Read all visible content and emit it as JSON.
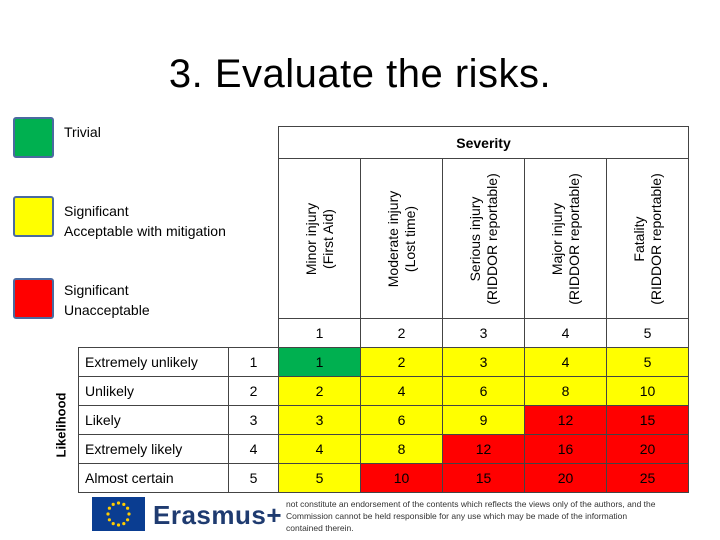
{
  "title": "3.  Evaluate the risks.",
  "legend": [
    {
      "name": "Trivial",
      "color": "#00b050"
    },
    {
      "name": "Significant\nAcceptable with mitigation",
      "line1": "Significant",
      "line2": "Acceptable with mitigation",
      "color": "#ffff00"
    },
    {
      "name": "Significant\nUnacceptable",
      "line1": "Significant",
      "line2": "Unacceptable",
      "color": "#ff0000"
    }
  ],
  "matrix": {
    "severity_title": "Severity",
    "likelihood_title": "Likelihood",
    "severity_columns": [
      {
        "line1": "Minor injury",
        "line2": "(First Aid)",
        "level": "1"
      },
      {
        "line1": "Moderate injury",
        "line2": "(Lost time)",
        "level": "2"
      },
      {
        "line1": "Serious injury",
        "line2": "(RIDDOR reportable)",
        "level": "3"
      },
      {
        "line1": "Major injury",
        "line2": "(RIDDOR reportable)",
        "level": "4"
      },
      {
        "line1": "Fatality",
        "line2": "(RIDDOR reportable)",
        "level": "5"
      }
    ],
    "rows": [
      {
        "label": "Extremely unlikely",
        "level": "1",
        "values": [
          "1",
          "2",
          "3",
          "4",
          "5"
        ],
        "colors": [
          "g",
          "y",
          "y",
          "y",
          "y"
        ]
      },
      {
        "label": "Unlikely",
        "level": "2",
        "values": [
          "2",
          "4",
          "6",
          "8",
          "10"
        ],
        "colors": [
          "y",
          "y",
          "y",
          "y",
          "y"
        ]
      },
      {
        "label": "Likely",
        "level": "3",
        "values": [
          "3",
          "6",
          "9",
          "12",
          "15"
        ],
        "colors": [
          "y",
          "y",
          "y",
          "r",
          "r"
        ]
      },
      {
        "label": "Extremely likely",
        "level": "4",
        "values": [
          "4",
          "8",
          "12",
          "16",
          "20"
        ],
        "colors": [
          "y",
          "y",
          "r",
          "r",
          "r"
        ]
      },
      {
        "label": "Almost certain",
        "level": "5",
        "values": [
          "5",
          "10",
          "15",
          "20",
          "25"
        ],
        "colors": [
          "y",
          "r",
          "r",
          "r",
          "r"
        ]
      }
    ]
  },
  "footer": {
    "brand": "Erasmus+",
    "disclaimer": "not constitute an endorsement of the contents which reflects the views only of the authors, and the Commission cannot be held responsible for any use which may be made of the information contained therein."
  }
}
